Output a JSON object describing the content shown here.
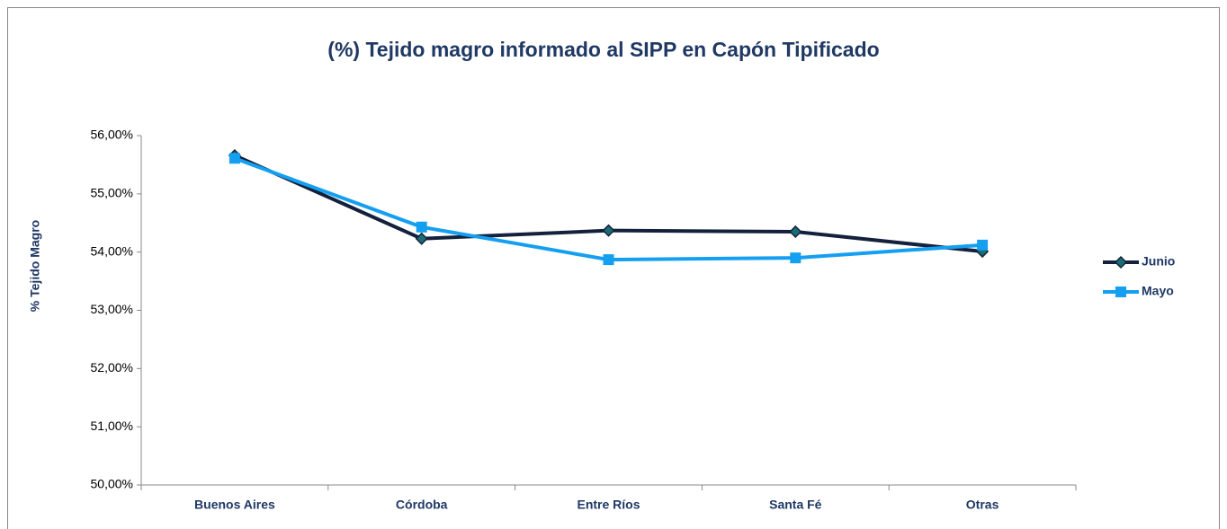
{
  "chart_data": {
    "type": "line",
    "title": "(%) Tejido magro informado al SIPP en Capón Tipificado",
    "y_label": "% Tejido Magro",
    "categories": [
      "Buenos Aires",
      "Córdoba",
      "Entre Ríos",
      "Santa Fé",
      "Otras"
    ],
    "series": [
      {
        "name": "Junio",
        "color": "#14213d",
        "marker": "diamond",
        "values": [
          55.66,
          54.23,
          54.37,
          54.35,
          54.01
        ]
      },
      {
        "name": "Mayo",
        "color": "#159ff0",
        "marker": "square",
        "values": [
          55.61,
          54.43,
          53.87,
          53.9,
          54.12
        ]
      }
    ],
    "ylim": [
      50,
      56
    ],
    "yticks": [
      {
        "value": 50,
        "label": "50,00%"
      },
      {
        "value": 51,
        "label": "51,00%"
      },
      {
        "value": 52,
        "label": "52,00%"
      },
      {
        "value": 53,
        "label": "53,00%"
      },
      {
        "value": 54,
        "label": "54,00%"
      },
      {
        "value": 55,
        "label": "55,00%"
      },
      {
        "value": 56,
        "label": "56,00%"
      }
    ],
    "legend": "right"
  }
}
